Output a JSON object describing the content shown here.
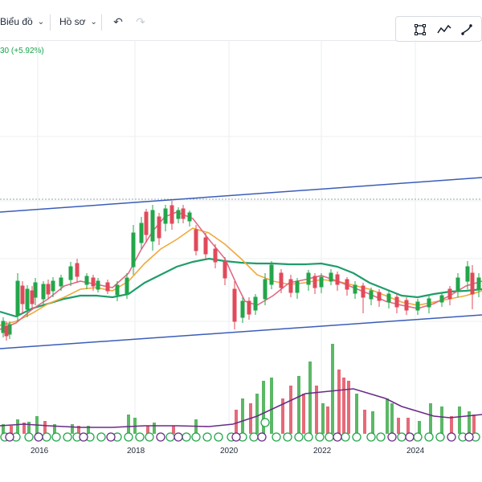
{
  "toolbar": {
    "chart_label": "Biểu đồ",
    "profile_label": "Hồ sơ"
  },
  "header": {
    "price_change": "30 (+5.92%)"
  },
  "x_axis": {
    "labels": [
      "2016",
      "2018",
      "2020",
      "2022",
      "2024"
    ]
  },
  "icons": {
    "chart_chevron": "chevron-down-icon",
    "profile_chevron": "chevron-down-icon",
    "undo": "undo-icon",
    "redo": "redo-icon",
    "select": "selection-box-icon",
    "line": "line-tool-icon",
    "fib": "fibonacci-tool-icon"
  },
  "chart_data": {
    "type": "candlestick",
    "xlabel": "",
    "ylabel": "",
    "grid": true,
    "channel_lines": [
      {
        "name": "upper",
        "from": {
          "x": "2015",
          "y": null
        },
        "to": {
          "x": "2025.5",
          "y": null
        }
      },
      {
        "name": "lower",
        "from": {
          "x": "2015",
          "y": null
        },
        "to": {
          "x": "2025.5",
          "y": null
        }
      }
    ],
    "candles_summary": "monthly candles 2015–2025 with moving averages and volume",
    "volume": true,
    "dividend_markers": true
  },
  "colors": {
    "up": "#22a64a",
    "down": "#e14a5a",
    "ma_fast": "#e06a86",
    "ma_mid": "#f0a93b",
    "ma_slow": "#1f9d6a",
    "volume_ma": "#6a2b87",
    "channel": "#3a5db8",
    "grid": "#e9ecef"
  }
}
